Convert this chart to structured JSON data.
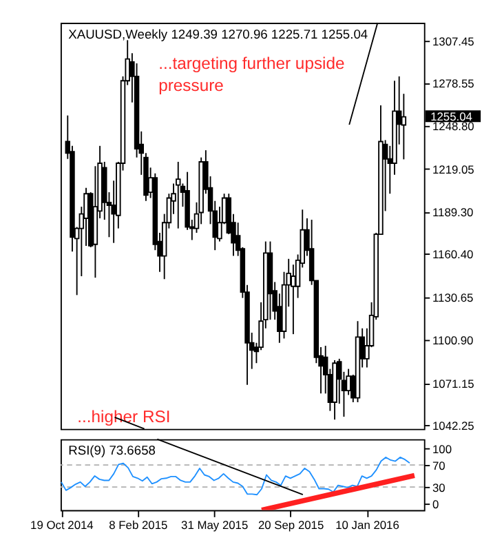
{
  "chart_data": [
    {
      "type": "candlestick",
      "title": "XAUUSD,Weekly 1249.39 1270.96 1225.71 1255.04",
      "categories": [
        null,
        null,
        null,
        null,
        null,
        null,
        null,
        null,
        null,
        null,
        null,
        null,
        null,
        null,
        null,
        null,
        null,
        null,
        null,
        null,
        null,
        null,
        null,
        null,
        null,
        null,
        null,
        null,
        null,
        null,
        null,
        null,
        null,
        null,
        null,
        null,
        null,
        null,
        null,
        null,
        null,
        null,
        null,
        null,
        null,
        null,
        null,
        null,
        null,
        null,
        null,
        null,
        null,
        null,
        null,
        null,
        null,
        null,
        null,
        null,
        null,
        null,
        null,
        null,
        null,
        null,
        null,
        null,
        null,
        null,
        null,
        null,
        null,
        null
      ],
      "ohlc": [
        [
          1238,
          1256,
          1226,
          1230
        ],
        [
          1231,
          1235,
          1162,
          1172
        ],
        [
          1171,
          1179,
          1132,
          1178
        ],
        [
          1178,
          1193,
          1145,
          1188
        ],
        [
          1185,
          1206,
          1166,
          1202
        ],
        [
          1202,
          1203,
          1165,
          1166
        ],
        [
          1167,
          1221,
          1144,
          1193
        ],
        [
          1190,
          1235,
          1185,
          1223
        ],
        [
          1220,
          1224,
          1184,
          1196
        ],
        [
          1196,
          1203,
          1172,
          1194
        ],
        [
          1194,
          1211,
          1168,
          1188
        ],
        [
          1187,
          1224,
          1178,
          1223
        ],
        [
          1223,
          1283,
          1218,
          1280
        ],
        [
          1280,
          1308,
          1277,
          1295
        ],
        [
          1293,
          1299,
          1265,
          1283
        ],
        [
          1283,
          1292,
          1227,
          1233
        ],
        [
          1236,
          1245,
          1215,
          1230
        ],
        [
          1227,
          1230,
          1197,
          1201
        ],
        [
          1203,
          1220,
          1199,
          1213
        ],
        [
          1213,
          1216,
          1163,
          1167
        ],
        [
          1169,
          1175,
          1148,
          1159
        ],
        [
          1159,
          1188,
          1143,
          1182
        ],
        [
          1182,
          1202,
          1178,
          1199
        ],
        [
          1197,
          1209,
          1188,
          1202
        ],
        [
          1208,
          1224,
          1178,
          1212
        ],
        [
          1207,
          1209,
          1193,
          1203
        ],
        [
          1204,
          1217,
          1177,
          1179
        ],
        [
          1179,
          1184,
          1170,
          1178
        ],
        [
          1178,
          1196,
          1175,
          1188
        ],
        [
          1189,
          1227,
          1181,
          1224
        ],
        [
          1224,
          1232,
          1202,
          1205
        ],
        [
          1206,
          1214,
          1181,
          1190
        ],
        [
          1190,
          1197,
          1163,
          1172
        ],
        [
          1171,
          1193,
          1169,
          1182
        ],
        [
          1182,
          1202,
          1181,
          1199
        ],
        [
          1199,
          1202,
          1174,
          1175
        ],
        [
          1182,
          1188,
          1159,
          1168
        ],
        [
          1173,
          1182,
          1159,
          1163
        ],
        [
          1164,
          1165,
          1130,
          1134
        ],
        [
          1134,
          1139,
          1070,
          1099
        ],
        [
          1099,
          1106,
          1081,
          1094
        ],
        [
          1096,
          1099,
          1085,
          1093
        ],
        [
          1096,
          1127,
          1094,
          1114
        ],
        [
          1115,
          1169,
          1109,
          1161
        ],
        [
          1161,
          1169,
          1115,
          1133
        ],
        [
          1135,
          1141,
          1115,
          1121
        ],
        [
          1124,
          1133,
          1099,
          1107
        ],
        [
          1107,
          1148,
          1102,
          1139
        ],
        [
          1139,
          1157,
          1124,
          1147
        ],
        [
          1138,
          1153,
          1105,
          1145
        ],
        [
          1138,
          1160,
          1130,
          1156
        ],
        [
          1154,
          1191,
          1151,
          1177
        ],
        [
          1177,
          1185,
          1159,
          1163
        ],
        [
          1164,
          1184,
          1139,
          1142
        ],
        [
          1142,
          1142,
          1085,
          1089
        ],
        [
          1090,
          1096,
          1064,
          1083
        ],
        [
          1089,
          1097,
          1064,
          1077
        ],
        [
          1077,
          1081,
          1052,
          1058
        ],
        [
          1058,
          1087,
          1046,
          1085
        ],
        [
          1086,
          1088,
          1057,
          1074
        ],
        [
          1073,
          1079,
          1048,
          1066
        ],
        [
          1066,
          1081,
          1063,
          1076
        ],
        [
          1076,
          1077,
          1058,
          1061
        ],
        [
          1061,
          1114,
          1058,
          1103
        ],
        [
          1103,
          1109,
          1082,
          1088
        ],
        [
          1088,
          1109,
          1082,
          1097
        ],
        [
          1097,
          1127,
          1096,
          1118
        ],
        [
          1117,
          1175,
          1115,
          1174
        ],
        [
          1174,
          1263,
          1174,
          1238
        ],
        [
          1236,
          1239,
          1190,
          1226
        ],
        [
          1226,
          1235,
          1202,
          1223
        ],
        [
          1223,
          1280,
          1215,
          1259
        ],
        [
          1259,
          1283,
          1236,
          1250
        ],
        [
          1249.39,
          1270.96,
          1225.71,
          1255.04
        ]
      ],
      "ylim": [
        1039.6,
        1320
      ],
      "yticks": [
        {
          "value": 1042.25,
          "label": "1042.25"
        },
        {
          "value": 1071.15,
          "label": "1071.15"
        },
        {
          "value": 1100.9,
          "label": "1100.90"
        },
        {
          "value": 1130.65,
          "label": "1130.65"
        },
        {
          "value": 1160.4,
          "label": "1160.40"
        },
        {
          "value": 1189.3,
          "label": "1189.30"
        },
        {
          "value": 1219.05,
          "label": "1219.05"
        },
        {
          "value": 1248.8,
          "label": "1248.80"
        },
        {
          "value": 1278.55,
          "label": "1278.55"
        },
        {
          "value": 1307.45,
          "label": "1307.45"
        }
      ],
      "annotations": [
        "...targeting further upside pressure",
        "...higher RSI",
        "1255.04"
      ],
      "tick_labels": "y",
      "grid": false
    },
    {
      "type": "line",
      "title": "RSI(9) 73.6658",
      "x": [
        "2014-10-19",
        "2014-10-26",
        "2014-11-02",
        "2014-11-09",
        "2014-11-16",
        "2014-11-23",
        "2014-11-30",
        "2014-12-07",
        "2014-12-14",
        "2014-12-21",
        "2014-12-28",
        "2015-01-04",
        "2015-01-11",
        "2015-01-18",
        "2015-01-25",
        "2015-02-01",
        "2015-02-08",
        "2015-02-15",
        "2015-02-22",
        "2015-03-01",
        "2015-03-08",
        "2015-03-15",
        "2015-03-22",
        "2015-03-29",
        "2015-04-05",
        "2015-04-12",
        "2015-04-19",
        "2015-04-26",
        "2015-05-03",
        "2015-05-10",
        "2015-05-17",
        "2015-05-24",
        "2015-05-31",
        "2015-06-07",
        "2015-06-14",
        "2015-06-21",
        "2015-06-28",
        "2015-07-05",
        "2015-07-12",
        "2015-07-19",
        "2015-07-26",
        "2015-08-02",
        "2015-08-09",
        "2015-08-16",
        "2015-08-23",
        "2015-08-30",
        "2015-09-06",
        "2015-09-13",
        "2015-09-20",
        "2015-09-27",
        "2015-10-04",
        "2015-10-11",
        "2015-10-18",
        "2015-10-25",
        "2015-11-01",
        "2015-11-08",
        "2015-11-15",
        "2015-11-22",
        "2015-11-29",
        "2015-12-06",
        "2015-12-13",
        "2015-12-20",
        "2015-12-27",
        "2016-01-03",
        "2016-01-10",
        "2016-01-17",
        "2016-01-24",
        "2016-01-31",
        "2016-02-07",
        "2016-02-14",
        "2016-02-21",
        "2016-02-28",
        "2016-03-06",
        "2016-03-13"
      ],
      "series": [
        {
          "color": "#1e90ff",
          "values": [
            39,
            24,
            29,
            35,
            39,
            31,
            39,
            50,
            44,
            42,
            42,
            54,
            71,
            73,
            65,
            49,
            46,
            41,
            48,
            36,
            39,
            45,
            46,
            49,
            49,
            42,
            39,
            39,
            50,
            64,
            52,
            49,
            42,
            46,
            54,
            46,
            39,
            37,
            31,
            17,
            17,
            16,
            27,
            52,
            42,
            39,
            33,
            50,
            46,
            50,
            54,
            64,
            58,
            44,
            27,
            27,
            26,
            21,
            33,
            31,
            29,
            33,
            31,
            50,
            46,
            50,
            61,
            77,
            84,
            79,
            77,
            84,
            80,
            73.6658
          ]
        },
        {
          "type": "line",
          "color": "#ff2020",
          "x": [
            "2015-08-09",
            "2016-03-20"
          ],
          "values": [
            -12,
            51
          ]
        }
      ],
      "xlim": [
        "2014-10-18",
        "2016-04-03"
      ],
      "ylim": [
        -12,
        117
      ],
      "yticks": [
        0,
        30,
        70,
        100
      ],
      "xticks": [
        {
          "value": "2014-10-19",
          "label": "19 Oct 2014"
        },
        {
          "value": "2015-02-08",
          "label": "8 Feb 2015"
        },
        {
          "value": "2015-05-31",
          "label": "31 May 2015"
        },
        {
          "value": "2015-09-20",
          "label": "20 Sep 2015"
        },
        {
          "value": "2016-01-10",
          "label": "10 Jan 2016"
        }
      ],
      "ref_lines": [
        {
          "axis": "y",
          "value": 70,
          "label": null,
          "color": "#b0b0b0",
          "line_style": "dashed"
        },
        {
          "axis": "y",
          "value": 30,
          "label": null,
          "color": "#b0b0b0",
          "line_style": "dashed"
        }
      ],
      "grid": false
    }
  ]
}
